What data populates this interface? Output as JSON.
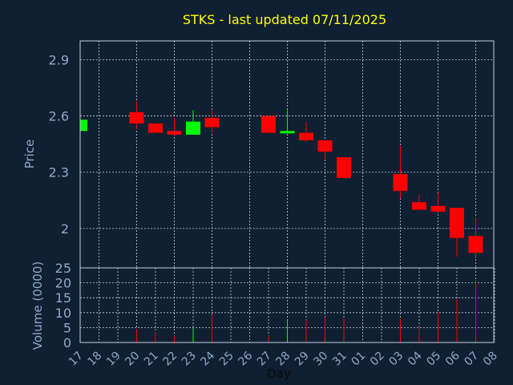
{
  "title": "STKS - last updated 07/11/2025",
  "colors": {
    "background": "#0f2033",
    "title": "#ffff00",
    "text": "#8fa8c8",
    "up": "#00ff00",
    "down": "#ff0000",
    "grid": "#c8d0dc"
  },
  "chart_data": [
    {
      "type": "candlestick",
      "ylabel": "Price",
      "ylim": [
        1.79,
        3.0
      ],
      "yticks": [
        2,
        2.3,
        2.6,
        2.9
      ],
      "grid": true,
      "categories": [
        "17",
        "18",
        "19",
        "20",
        "21",
        "22",
        "23",
        "24",
        "25",
        "26",
        "27",
        "28",
        "29",
        "30",
        "31",
        "01",
        "02",
        "03",
        "04",
        "05",
        "06",
        "07",
        "08"
      ],
      "candles": [
        {
          "day": "17",
          "open": 2.52,
          "close": 2.58,
          "high": 2.58,
          "low": 2.52
        },
        {
          "day": "20",
          "open": 2.62,
          "close": 2.56,
          "high": 2.68,
          "low": 2.53
        },
        {
          "day": "21",
          "open": 2.56,
          "close": 2.51,
          "high": 2.56,
          "low": 2.51
        },
        {
          "day": "22",
          "open": 2.52,
          "close": 2.5,
          "high": 2.59,
          "low": 2.49
        },
        {
          "day": "23",
          "open": 2.5,
          "close": 2.57,
          "high": 2.63,
          "low": 2.5
        },
        {
          "day": "24",
          "open": 2.59,
          "close": 2.54,
          "high": 2.63,
          "low": 2.51
        },
        {
          "day": "27",
          "open": 2.6,
          "close": 2.51,
          "high": 2.6,
          "low": 2.51
        },
        {
          "day": "28",
          "open": 2.51,
          "close": 2.52,
          "high": 2.63,
          "low": 2.51
        },
        {
          "day": "29",
          "open": 2.51,
          "close": 2.47,
          "high": 2.57,
          "low": 2.46
        },
        {
          "day": "30",
          "open": 2.47,
          "close": 2.41,
          "high": 2.47,
          "low": 2.37
        },
        {
          "day": "31",
          "open": 2.38,
          "close": 2.27,
          "high": 2.38,
          "low": 2.27
        },
        {
          "day": "03",
          "open": 2.29,
          "close": 2.2,
          "high": 2.44,
          "low": 2.16
        },
        {
          "day": "04",
          "open": 2.14,
          "close": 2.1,
          "high": 2.18,
          "low": 2.1
        },
        {
          "day": "05",
          "open": 2.12,
          "close": 2.09,
          "high": 2.19,
          "low": 2.09
        },
        {
          "day": "06",
          "open": 2.11,
          "close": 1.95,
          "high": 2.11,
          "low": 1.85
        },
        {
          "day": "07",
          "open": 1.96,
          "close": 1.87,
          "high": 2.06,
          "low": 1.85
        }
      ]
    },
    {
      "type": "bar",
      "ylabel": "Volume (0000)",
      "xlabel": "Day",
      "ylim": [
        0,
        25
      ],
      "yticks": [
        0,
        5,
        10,
        15,
        20,
        25
      ],
      "categories": [
        "17",
        "18",
        "19",
        "20",
        "21",
        "22",
        "23",
        "24",
        "25",
        "26",
        "27",
        "28",
        "29",
        "30",
        "31",
        "01",
        "02",
        "03",
        "04",
        "05",
        "06",
        "07",
        "08"
      ],
      "bars": [
        {
          "day": "17",
          "value": 1.5,
          "color": "up"
        },
        {
          "day": "20",
          "value": 4.5,
          "color": "down"
        },
        {
          "day": "21",
          "value": 3.5,
          "color": "down"
        },
        {
          "day": "22",
          "value": 2.5,
          "color": "down"
        },
        {
          "day": "23",
          "value": 5,
          "color": "up"
        },
        {
          "day": "24",
          "value": 9.5,
          "color": "down"
        },
        {
          "day": "27",
          "value": 2.5,
          "color": "down"
        },
        {
          "day": "28",
          "value": 7.5,
          "color": "up"
        },
        {
          "day": "29",
          "value": 7.5,
          "color": "down"
        },
        {
          "day": "30",
          "value": 8.5,
          "color": "down"
        },
        {
          "day": "31",
          "value": 8,
          "color": "down"
        },
        {
          "day": "03",
          "value": 8,
          "color": "down"
        },
        {
          "day": "04",
          "value": 5.5,
          "color": "down"
        },
        {
          "day": "05",
          "value": 10,
          "color": "down"
        },
        {
          "day": "06",
          "value": 14.5,
          "color": "down"
        },
        {
          "day": "07",
          "value": 20.5,
          "color": "down"
        }
      ]
    }
  ]
}
